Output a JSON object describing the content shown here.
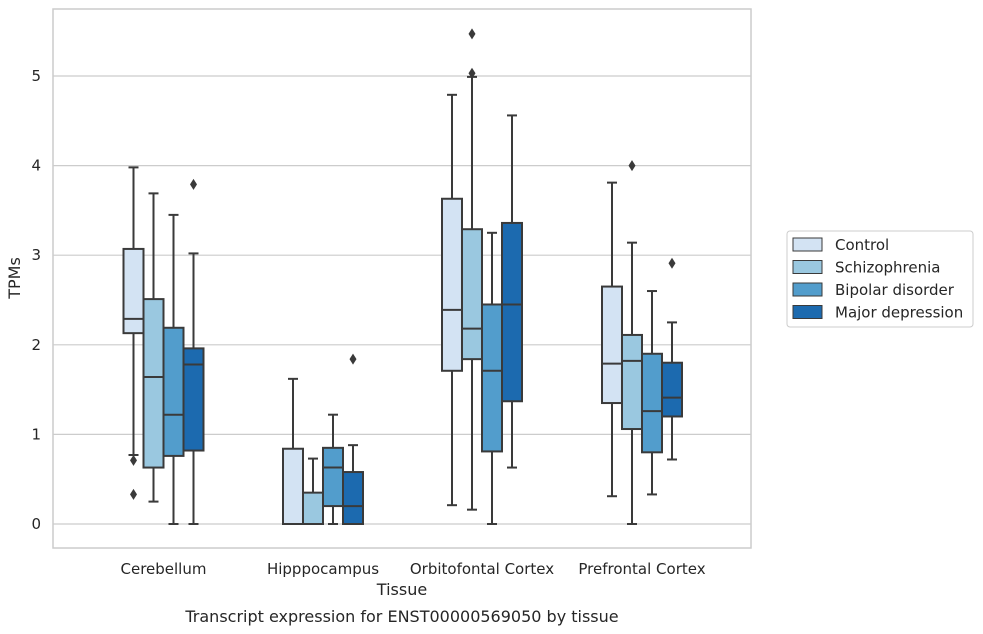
{
  "chart_data": {
    "type": "box",
    "title": "",
    "caption": "Transcript expression for ENST00000569050 by tissue",
    "xlabel": "Tissue",
    "ylabel": "TPMs",
    "ylim": [
      -0.27,
      5.7
    ],
    "yticks": [
      0,
      1,
      2,
      3,
      4,
      5
    ],
    "grid": "horizontal",
    "legend_position": "right",
    "categories": [
      "Cerebellum",
      "Hipppocampus",
      "Orbitofontal Cortex",
      "Prefrontal Cortex"
    ],
    "series": [
      {
        "name": "Control",
        "color": "#d3e3f3",
        "boxes": [
          {
            "whislo": 0.77,
            "q1": 2.13,
            "med": 2.29,
            "q3": 3.07,
            "whishi": 3.98,
            "fliers": [
              0.71,
              0.33
            ]
          },
          {
            "whislo": 0.0,
            "q1": 0.0,
            "med": 0.0,
            "q3": 0.84,
            "whishi": 1.62,
            "fliers": []
          },
          {
            "whislo": 0.21,
            "q1": 1.71,
            "med": 2.39,
            "q3": 3.63,
            "whishi": 4.79,
            "fliers": []
          },
          {
            "whislo": 0.31,
            "q1": 1.35,
            "med": 1.79,
            "q3": 2.65,
            "whishi": 3.81,
            "fliers": []
          }
        ]
      },
      {
        "name": "Schizophrenia",
        "color": "#9ac8e0",
        "boxes": [
          {
            "whislo": 0.25,
            "q1": 0.63,
            "med": 1.64,
            "q3": 2.51,
            "whishi": 3.69,
            "fliers": []
          },
          {
            "whislo": 0.0,
            "q1": 0.0,
            "med": 0.0,
            "q3": 0.35,
            "whishi": 0.73,
            "fliers": []
          },
          {
            "whislo": 0.16,
            "q1": 1.84,
            "med": 2.18,
            "q3": 3.29,
            "whishi": 4.99,
            "fliers": [
              5.03,
              5.47
            ]
          },
          {
            "whislo": 0.0,
            "q1": 1.06,
            "med": 1.82,
            "q3": 2.11,
            "whishi": 3.14,
            "fliers": [
              4.0
            ]
          }
        ]
      },
      {
        "name": "Bipolar disorder",
        "color": "#529dcc",
        "boxes": [
          {
            "whislo": 0.0,
            "q1": 0.76,
            "med": 1.22,
            "q3": 2.19,
            "whishi": 3.45,
            "fliers": []
          },
          {
            "whislo": 0.0,
            "q1": 0.2,
            "med": 0.63,
            "q3": 0.85,
            "whishi": 1.22,
            "fliers": []
          },
          {
            "whislo": 0.0,
            "q1": 0.81,
            "med": 1.71,
            "q3": 2.45,
            "whishi": 3.25,
            "fliers": []
          },
          {
            "whislo": 0.33,
            "q1": 0.8,
            "med": 1.26,
            "q3": 1.9,
            "whishi": 2.6,
            "fliers": []
          }
        ]
      },
      {
        "name": "Major depression",
        "color": "#1c6aaf",
        "boxes": [
          {
            "whislo": 0.0,
            "q1": 0.82,
            "med": 1.78,
            "q3": 1.96,
            "whishi": 3.02,
            "fliers": [
              3.79
            ]
          },
          {
            "whislo": 0.0,
            "q1": 0.0,
            "med": 0.2,
            "q3": 0.58,
            "whishi": 0.88,
            "fliers": [
              1.84
            ]
          },
          {
            "whislo": 0.63,
            "q1": 1.37,
            "med": 2.45,
            "q3": 3.36,
            "whishi": 4.56,
            "fliers": []
          },
          {
            "whislo": 0.72,
            "q1": 1.2,
            "med": 1.41,
            "q3": 1.8,
            "whishi": 2.25,
            "fliers": [
              2.91
            ]
          }
        ]
      }
    ]
  }
}
